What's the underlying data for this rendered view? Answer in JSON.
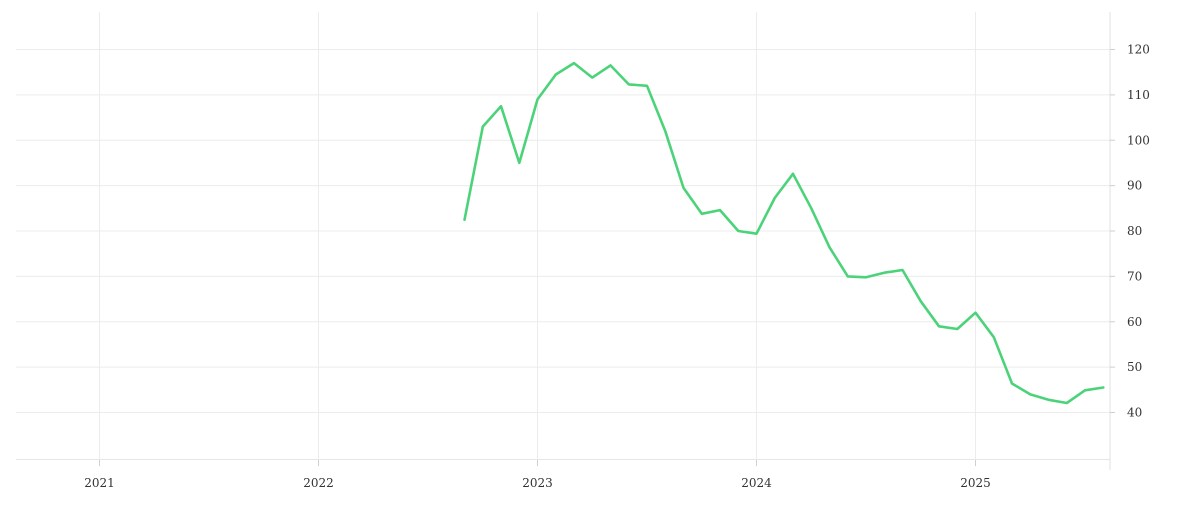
{
  "chart_data": {
    "type": "line",
    "title": "",
    "xlabel": "",
    "ylabel": "",
    "x_ticks": [
      "2021",
      "2022",
      "2023",
      "2024",
      "2025"
    ],
    "y_ticks": [
      40,
      50,
      60,
      70,
      80,
      90,
      100,
      110,
      120
    ],
    "ylim": [
      29,
      128
    ],
    "xlim": [
      "2020-08",
      "2025-08"
    ],
    "grid": true,
    "y_axis_side": "right",
    "series": [
      {
        "color": "#4cd37a",
        "points": [
          {
            "x": "2022-09",
            "y": 82.5
          },
          {
            "x": "2022-10",
            "y": 103
          },
          {
            "x": "2022-11",
            "y": 107.5
          },
          {
            "x": "2022-12",
            "y": 95
          },
          {
            "x": "2023-01",
            "y": 109
          },
          {
            "x": "2023-02",
            "y": 114.5
          },
          {
            "x": "2023-03",
            "y": 117
          },
          {
            "x": "2023-04",
            "y": 113.8
          },
          {
            "x": "2023-05",
            "y": 116.5
          },
          {
            "x": "2023-06",
            "y": 112.3
          },
          {
            "x": "2023-07",
            "y": 112
          },
          {
            "x": "2023-08",
            "y": 102
          },
          {
            "x": "2023-09",
            "y": 89.5
          },
          {
            "x": "2023-10",
            "y": 83.8
          },
          {
            "x": "2023-11",
            "y": 84.6
          },
          {
            "x": "2023-12",
            "y": 80
          },
          {
            "x": "2024-01",
            "y": 79.4
          },
          {
            "x": "2024-02",
            "y": 87.3
          },
          {
            "x": "2024-03",
            "y": 92.6
          },
          {
            "x": "2024-04",
            "y": 85
          },
          {
            "x": "2024-05",
            "y": 76.4
          },
          {
            "x": "2024-06",
            "y": 70
          },
          {
            "x": "2024-07",
            "y": 69.8
          },
          {
            "x": "2024-08",
            "y": 70.8
          },
          {
            "x": "2024-09",
            "y": 71.4
          },
          {
            "x": "2024-10",
            "y": 64.5
          },
          {
            "x": "2024-11",
            "y": 59
          },
          {
            "x": "2024-12",
            "y": 58.4
          },
          {
            "x": "2025-01",
            "y": 62
          },
          {
            "x": "2025-02",
            "y": 56.6
          },
          {
            "x": "2025-03",
            "y": 46.4
          },
          {
            "x": "2025-04",
            "y": 44
          },
          {
            "x": "2025-05",
            "y": 42.8
          },
          {
            "x": "2025-06",
            "y": 42.1
          },
          {
            "x": "2025-07",
            "y": 44.9
          },
          {
            "x": "2025-08",
            "y": 45.5
          }
        ]
      }
    ]
  }
}
